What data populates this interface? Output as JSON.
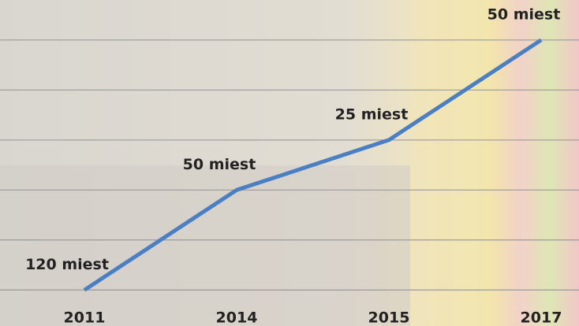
{
  "chart_data": {
    "type": "line",
    "categories": [
      "2011",
      "2014",
      "2015",
      "2017"
    ],
    "values": [
      120,
      170,
      195,
      245
    ],
    "point_labels": [
      "120 miest",
      "50 miest",
      "25 miest",
      "50 miest"
    ],
    "color": "#4a7fc4",
    "ylim": [
      102,
      265
    ],
    "yticks": [
      120,
      145,
      170,
      195,
      220,
      245
    ],
    "grid": true
  }
}
